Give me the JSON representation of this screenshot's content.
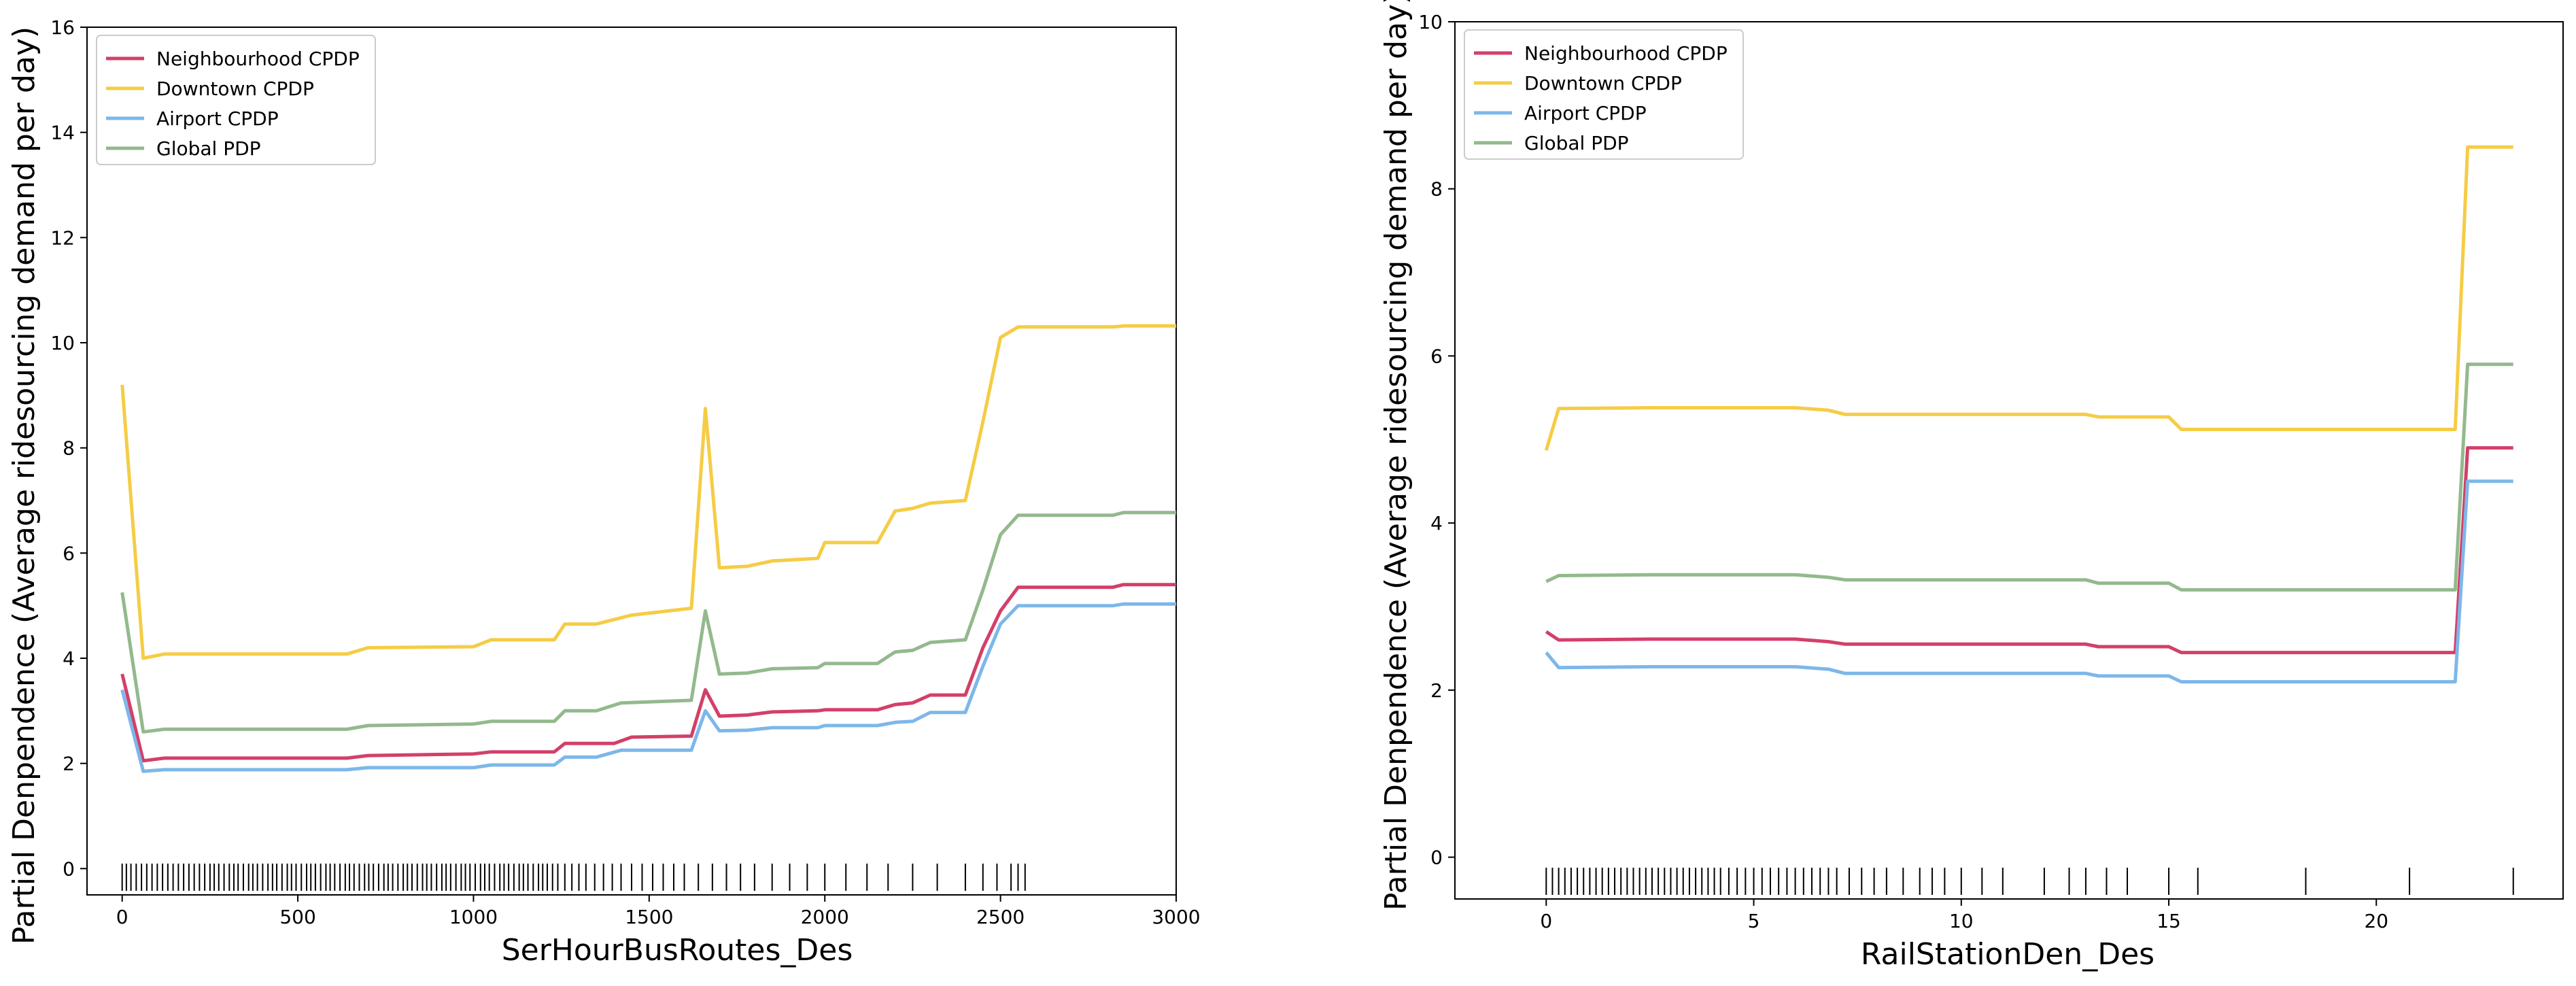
{
  "chart_data": [
    {
      "type": "line",
      "xlabel": "SerHourBusRoutes_Des",
      "ylabel": "Partial Denpendence (Average ridesourcing demand per day)",
      "xlim": [
        -100,
        3000
      ],
      "ylim": [
        -0.5,
        16
      ],
      "xticks": [
        0,
        500,
        1000,
        1500,
        2000,
        2500,
        3000
      ],
      "yticks": [
        0,
        2,
        4,
        6,
        8,
        10,
        12,
        14,
        16
      ],
      "grid": false,
      "legend": "top-left",
      "series": [
        {
          "name": "Neighbourhood CPDP",
          "color": "#d2406a",
          "x": [
            0,
            60,
            120,
            300,
            640,
            700,
            1000,
            1050,
            1230,
            1260,
            1400,
            1450,
            1620,
            1660,
            1700,
            1780,
            1850,
            1980,
            2000,
            2150,
            2200,
            2250,
            2300,
            2400,
            2450,
            2500,
            2550,
            2820,
            2850,
            3000
          ],
          "y": [
            3.7,
            2.05,
            2.1,
            2.1,
            2.1,
            2.15,
            2.18,
            2.22,
            2.22,
            2.38,
            2.38,
            2.5,
            2.52,
            3.4,
            2.9,
            2.92,
            2.98,
            3.0,
            3.02,
            3.02,
            3.12,
            3.15,
            3.3,
            3.3,
            4.2,
            4.9,
            5.35,
            5.35,
            5.4,
            5.4
          ]
        },
        {
          "name": "Downtown CPDP",
          "color": "#f5cc45",
          "x": [
            0,
            60,
            120,
            300,
            640,
            700,
            1000,
            1050,
            1230,
            1260,
            1350,
            1450,
            1620,
            1660,
            1700,
            1780,
            1850,
            1980,
            2000,
            2150,
            2200,
            2250,
            2300,
            2400,
            2450,
            2500,
            2550,
            2820,
            2850,
            3000
          ],
          "y": [
            9.2,
            4.0,
            4.08,
            4.08,
            4.08,
            4.2,
            4.22,
            4.35,
            4.35,
            4.65,
            4.65,
            4.82,
            4.95,
            8.75,
            5.72,
            5.75,
            5.85,
            5.9,
            6.2,
            6.2,
            6.8,
            6.85,
            6.95,
            7.0,
            8.5,
            10.1,
            10.3,
            10.3,
            10.32,
            10.32
          ]
        },
        {
          "name": "Airport CPDP",
          "color": "#7db7ea",
          "x": [
            0,
            60,
            120,
            300,
            640,
            700,
            1000,
            1050,
            1230,
            1260,
            1350,
            1420,
            1620,
            1660,
            1700,
            1780,
            1850,
            1980,
            2000,
            2150,
            2200,
            2250,
            2300,
            2400,
            2450,
            2500,
            2550,
            2820,
            2850,
            3000
          ],
          "y": [
            3.4,
            1.85,
            1.88,
            1.88,
            1.88,
            1.92,
            1.92,
            1.97,
            1.97,
            2.12,
            2.12,
            2.25,
            2.25,
            3.0,
            2.62,
            2.63,
            2.68,
            2.68,
            2.72,
            2.72,
            2.78,
            2.8,
            2.97,
            2.97,
            3.85,
            4.65,
            5.0,
            5.0,
            5.03,
            5.03
          ]
        },
        {
          "name": "Global PDP",
          "color": "#93b98d",
          "x": [
            0,
            60,
            120,
            300,
            640,
            700,
            1000,
            1050,
            1230,
            1260,
            1350,
            1420,
            1620,
            1660,
            1700,
            1780,
            1850,
            1980,
            2000,
            2150,
            2200,
            2250,
            2300,
            2400,
            2450,
            2500,
            2550,
            2820,
            2850,
            3000
          ],
          "y": [
            5.25,
            2.6,
            2.65,
            2.65,
            2.65,
            2.72,
            2.75,
            2.8,
            2.8,
            3.0,
            3.0,
            3.15,
            3.2,
            4.9,
            3.7,
            3.72,
            3.8,
            3.82,
            3.9,
            3.9,
            4.12,
            4.15,
            4.3,
            4.35,
            5.3,
            6.35,
            6.72,
            6.72,
            6.77,
            6.77
          ]
        }
      ],
      "rug": [
        0,
        12,
        25,
        40,
        55,
        70,
        85,
        100,
        115,
        130,
        145,
        160,
        175,
        190,
        205,
        220,
        235,
        250,
        262,
        275,
        290,
        305,
        318,
        330,
        345,
        360,
        372,
        385,
        400,
        415,
        428,
        440,
        455,
        470,
        482,
        495,
        510,
        525,
        537,
        550,
        565,
        580,
        592,
        605,
        620,
        635,
        647,
        660,
        675,
        690,
        702,
        715,
        730,
        745,
        757,
        770,
        785,
        800,
        812,
        825,
        840,
        855,
        867,
        880,
        895,
        910,
        922,
        935,
        950,
        965,
        977,
        990,
        1005,
        1020,
        1032,
        1045,
        1060,
        1075,
        1087,
        1100,
        1115,
        1130,
        1142,
        1155,
        1170,
        1185,
        1197,
        1210,
        1225,
        1240,
        1260,
        1280,
        1300,
        1320,
        1345,
        1370,
        1395,
        1420,
        1450,
        1480,
        1510,
        1540,
        1570,
        1600,
        1640,
        1680,
        1720,
        1760,
        1800,
        1850,
        1900,
        1950,
        2000,
        2060,
        2120,
        2180,
        2250,
        2320,
        2400,
        2450,
        2490,
        2530,
        2550,
        2570
      ]
    },
    {
      "type": "line",
      "xlabel": "RailStationDen_Des",
      "ylabel": "Partial Denpendence (Average ridesourcing demand per day)",
      "xlim": [
        -2.2,
        24.5
      ],
      "ylim": [
        -0.5,
        10
      ],
      "xticks": [
        0,
        5,
        10,
        15,
        20
      ],
      "yticks": [
        0,
        2,
        4,
        6,
        8,
        10
      ],
      "grid": false,
      "legend": "top-left",
      "series": [
        {
          "name": "Neighbourhood CPDP",
          "color": "#d2406a",
          "x": [
            0,
            0.3,
            2.5,
            6,
            6.8,
            7.2,
            9.5,
            13,
            13.3,
            15,
            15.3,
            21,
            21.9,
            22.2,
            23.3
          ],
          "y": [
            2.7,
            2.6,
            2.61,
            2.61,
            2.58,
            2.55,
            2.55,
            2.55,
            2.52,
            2.52,
            2.45,
            2.45,
            2.45,
            4.9,
            4.9
          ]
        },
        {
          "name": "Downtown CPDP",
          "color": "#f5cc45",
          "x": [
            0,
            0.3,
            2.5,
            6,
            6.8,
            7.2,
            9.5,
            13,
            13.3,
            15,
            15.3,
            21,
            21.9,
            22.2,
            23.3
          ],
          "y": [
            4.87,
            5.37,
            5.38,
            5.38,
            5.35,
            5.3,
            5.3,
            5.3,
            5.27,
            5.27,
            5.12,
            5.12,
            5.12,
            8.5,
            8.5
          ]
        },
        {
          "name": "Airport CPDP",
          "color": "#7db7ea",
          "x": [
            0,
            0.3,
            2.5,
            6,
            6.8,
            7.2,
            9.5,
            13,
            13.3,
            15,
            15.3,
            21,
            21.9,
            22.2,
            23.3
          ],
          "y": [
            2.45,
            2.27,
            2.28,
            2.28,
            2.25,
            2.2,
            2.2,
            2.2,
            2.17,
            2.17,
            2.1,
            2.1,
            2.1,
            4.5,
            4.5
          ]
        },
        {
          "name": "Global PDP",
          "color": "#93b98d",
          "x": [
            0,
            0.3,
            2.5,
            6,
            6.8,
            7.2,
            9.5,
            13,
            13.3,
            15,
            15.3,
            21,
            21.9,
            22.2,
            23.3
          ],
          "y": [
            3.3,
            3.37,
            3.38,
            3.38,
            3.35,
            3.32,
            3.32,
            3.32,
            3.28,
            3.28,
            3.2,
            3.2,
            3.2,
            5.9,
            5.9
          ]
        }
      ],
      "rug": [
        0,
        0.15,
        0.3,
        0.45,
        0.6,
        0.75,
        0.9,
        1.05,
        1.2,
        1.35,
        1.5,
        1.65,
        1.8,
        1.95,
        2.1,
        2.25,
        2.4,
        2.55,
        2.7,
        2.85,
        3.0,
        3.15,
        3.3,
        3.45,
        3.6,
        3.75,
        3.9,
        4.05,
        4.2,
        4.4,
        4.6,
        4.8,
        5.0,
        5.2,
        5.4,
        5.6,
        5.8,
        6.0,
        6.2,
        6.4,
        6.6,
        6.8,
        7.0,
        7.3,
        7.6,
        7.9,
        8.2,
        8.6,
        9.0,
        9.3,
        9.6,
        10.0,
        10.5,
        11.0,
        12.0,
        12.6,
        13.0,
        13.5,
        14.0,
        15.0,
        15.7,
        18.3,
        20.8,
        23.3
      ]
    }
  ]
}
